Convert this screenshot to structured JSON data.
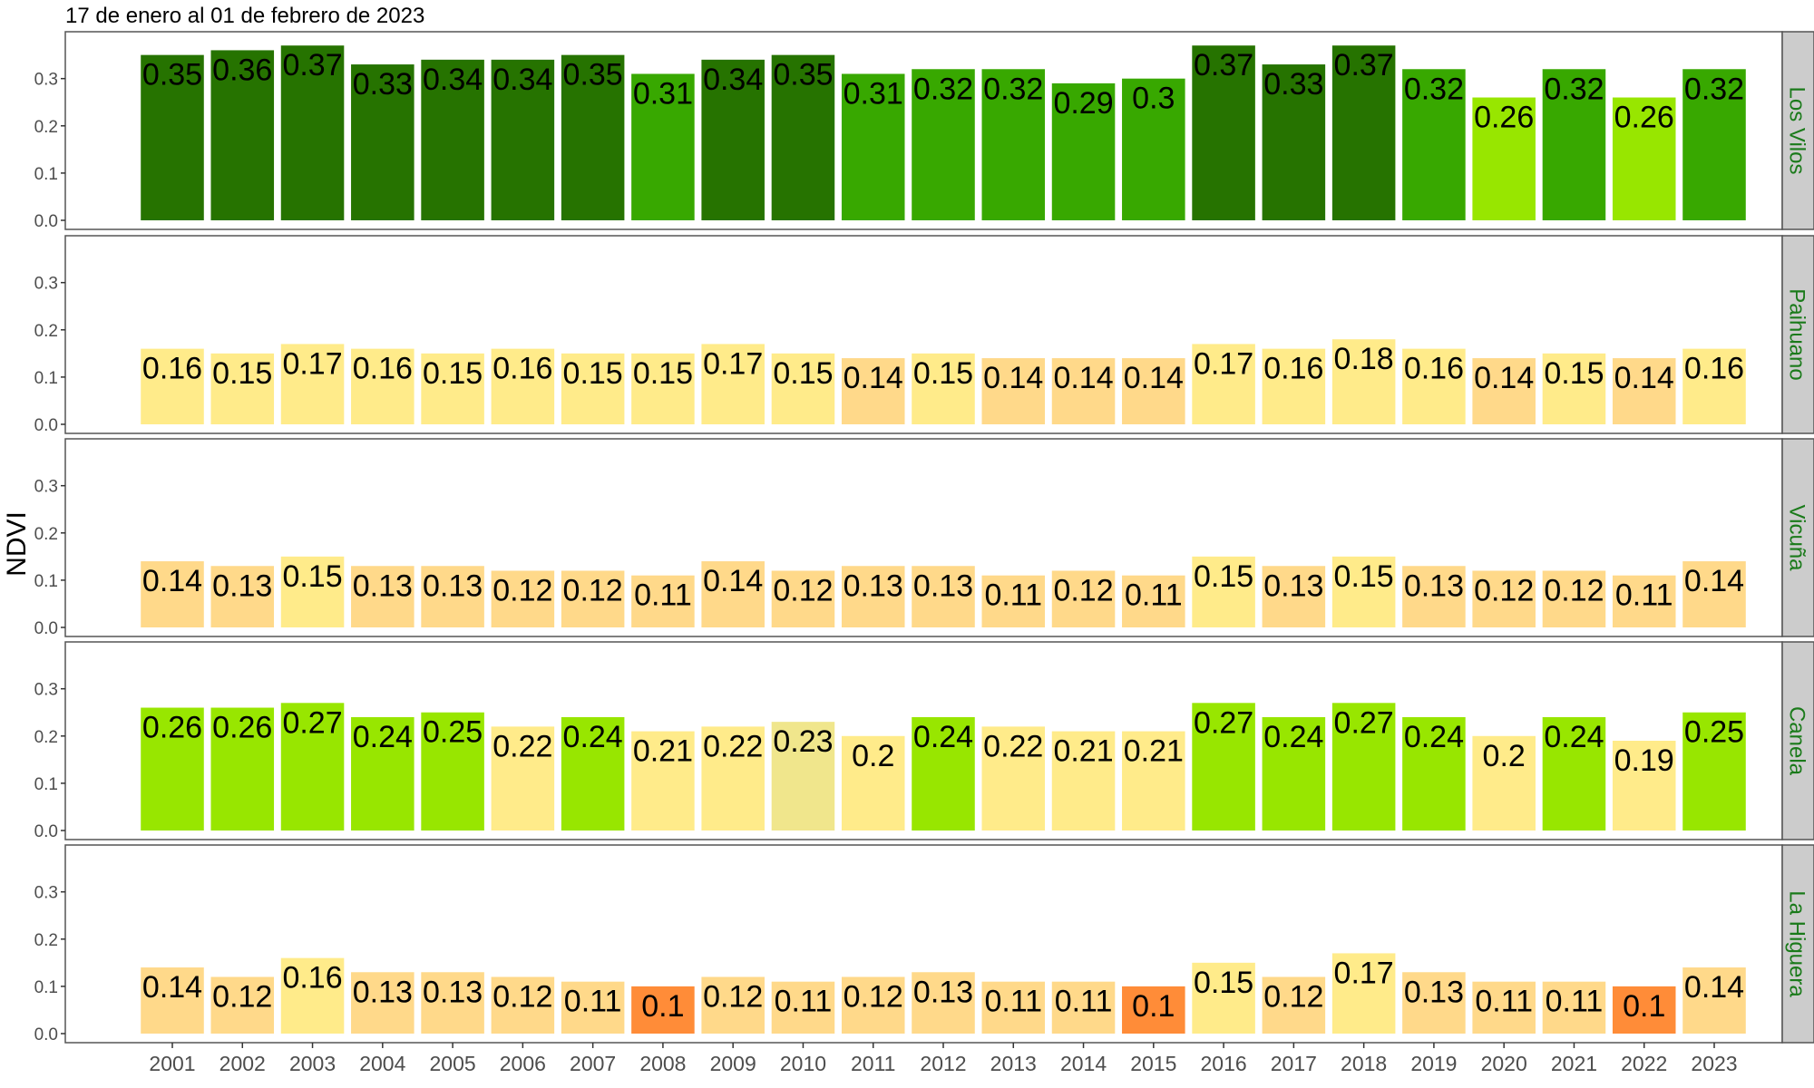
{
  "chart_data": {
    "type": "bar",
    "title": "17 de enero al 01 de febrero de 2023",
    "xlabel": "",
    "ylabel": "NDVI",
    "ylim": [
      0,
      0.38
    ],
    "yticks": [
      "0.0",
      "0.1",
      "0.2",
      "0.3"
    ],
    "grid": false,
    "categories": [
      "2001",
      "2002",
      "2003",
      "2004",
      "2005",
      "2006",
      "2007",
      "2008",
      "2009",
      "2010",
      "2011",
      "2012",
      "2013",
      "2014",
      "2015",
      "2016",
      "2017",
      "2018",
      "2019",
      "2020",
      "2021",
      "2022",
      "2023"
    ],
    "series": [
      {
        "name": "Los Vilos",
        "values": [
          0.35,
          0.36,
          0.37,
          0.33,
          0.34,
          0.34,
          0.35,
          0.31,
          0.34,
          0.35,
          0.31,
          0.32,
          0.32,
          0.29,
          0.3,
          0.37,
          0.33,
          0.37,
          0.32,
          0.26,
          0.32,
          0.26,
          0.32
        ],
        "colors": [
          "#267300",
          "#267300",
          "#267300",
          "#267300",
          "#267300",
          "#267300",
          "#267300",
          "#38a800",
          "#267300",
          "#267300",
          "#38a800",
          "#38a800",
          "#38a800",
          "#38a800",
          "#38a800",
          "#267300",
          "#267300",
          "#267300",
          "#38a800",
          "#98e600",
          "#38a800",
          "#98e600",
          "#38a800"
        ]
      },
      {
        "name": "Paihuano",
        "values": [
          0.16,
          0.15,
          0.17,
          0.16,
          0.15,
          0.16,
          0.15,
          0.15,
          0.17,
          0.15,
          0.14,
          0.15,
          0.14,
          0.14,
          0.14,
          0.17,
          0.16,
          0.18,
          0.16,
          0.14,
          0.15,
          0.14,
          0.16
        ],
        "colors": [
          "#ffeb8a",
          "#ffeb8a",
          "#ffeb8a",
          "#ffeb8a",
          "#ffeb8a",
          "#ffeb8a",
          "#ffeb8a",
          "#ffeb8a",
          "#ffeb8a",
          "#ffeb8a",
          "#ffd98a",
          "#ffeb8a",
          "#ffd98a",
          "#ffd98a",
          "#ffd98a",
          "#ffeb8a",
          "#ffeb8a",
          "#ffeb8a",
          "#ffeb8a",
          "#ffd98a",
          "#ffeb8a",
          "#ffd98a",
          "#ffeb8a"
        ]
      },
      {
        "name": "Vicuña",
        "values": [
          0.14,
          0.13,
          0.15,
          0.13,
          0.13,
          0.12,
          0.12,
          0.11,
          0.14,
          0.12,
          0.13,
          0.13,
          0.11,
          0.12,
          0.11,
          0.15,
          0.13,
          0.15,
          0.13,
          0.12,
          0.12,
          0.11,
          0.14
        ],
        "colors": [
          "#ffd98a",
          "#ffd98a",
          "#ffeb8a",
          "#ffd98a",
          "#ffd98a",
          "#ffd98a",
          "#ffd98a",
          "#ffd98a",
          "#ffd98a",
          "#ffd98a",
          "#ffd98a",
          "#ffd98a",
          "#ffd98a",
          "#ffd98a",
          "#ffd98a",
          "#ffeb8a",
          "#ffd98a",
          "#ffeb8a",
          "#ffd98a",
          "#ffd98a",
          "#ffd98a",
          "#ffd98a",
          "#ffd98a"
        ]
      },
      {
        "name": "Canela",
        "values": [
          0.26,
          0.26,
          0.27,
          0.24,
          0.25,
          0.22,
          0.24,
          0.21,
          0.22,
          0.23,
          0.2,
          0.24,
          0.22,
          0.21,
          0.21,
          0.27,
          0.24,
          0.27,
          0.24,
          0.2,
          0.24,
          0.19,
          0.25
        ],
        "colors": [
          "#98e600",
          "#98e600",
          "#98e600",
          "#98e600",
          "#98e600",
          "#ffeb8a",
          "#98e600",
          "#ffeb8a",
          "#ffeb8a",
          "#f0e68c",
          "#ffeb8a",
          "#98e600",
          "#ffeb8a",
          "#ffeb8a",
          "#ffeb8a",
          "#98e600",
          "#98e600",
          "#98e600",
          "#98e600",
          "#ffeb8a",
          "#98e600",
          "#ffeb8a",
          "#98e600"
        ]
      },
      {
        "name": "La Higuera",
        "values": [
          0.14,
          0.12,
          0.16,
          0.13,
          0.13,
          0.12,
          0.11,
          0.1,
          0.12,
          0.11,
          0.12,
          0.13,
          0.11,
          0.11,
          0.1,
          0.15,
          0.12,
          0.17,
          0.13,
          0.11,
          0.11,
          0.1,
          0.14
        ],
        "colors": [
          "#ffd98a",
          "#ffd98a",
          "#ffeb8a",
          "#ffd98a",
          "#ffd98a",
          "#ffd98a",
          "#ffd98a",
          "#ff8c38",
          "#ffd98a",
          "#ffd98a",
          "#ffd98a",
          "#ffd98a",
          "#ffd98a",
          "#ffd98a",
          "#ff8c38",
          "#ffeb8a",
          "#ffd98a",
          "#ffeb8a",
          "#ffd98a",
          "#ffd98a",
          "#ffd98a",
          "#ff8c38",
          "#ffd98a"
        ]
      }
    ],
    "strip_text_color": "#1a7a1a",
    "strip_fill": "#cccccc"
  }
}
